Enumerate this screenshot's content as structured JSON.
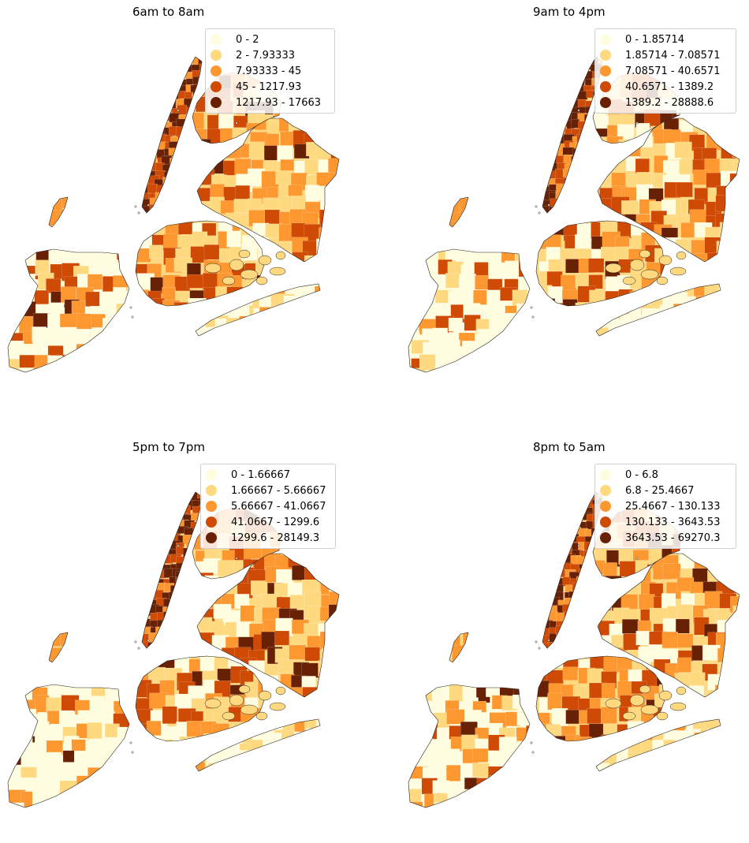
{
  "palette": [
    "#fffddf",
    "#fed980",
    "#fd9830",
    "#cf4b05",
    "#692105"
  ],
  "panels": [
    {
      "title": "6am to 8am",
      "legend": [
        "0 - 2",
        "2 - 7.93333",
        "7.93333 - 45",
        "45 - 1217.93",
        "1217.93 - 17663"
      ]
    },
    {
      "title": "9am to 4pm",
      "legend": [
        "0 - 1.85714",
        "1.85714 - 7.08571",
        "7.08571 - 40.6571",
        "40.6571 - 1389.2",
        "1389.2 - 28888.6"
      ]
    },
    {
      "title": "5pm to 7pm",
      "legend": [
        "0 - 1.66667",
        "1.66667 - 5.66667",
        "5.66667 - 41.0667",
        "41.0667 - 1299.6",
        "1299.6 - 28149.3"
      ]
    },
    {
      "title": "8pm to 5am",
      "legend": [
        "0 - 6.8",
        "6.8 - 25.4667",
        "25.4667 - 130.133",
        "130.133 - 3643.53",
        "3643.53 - 69270.3"
      ]
    }
  ]
}
